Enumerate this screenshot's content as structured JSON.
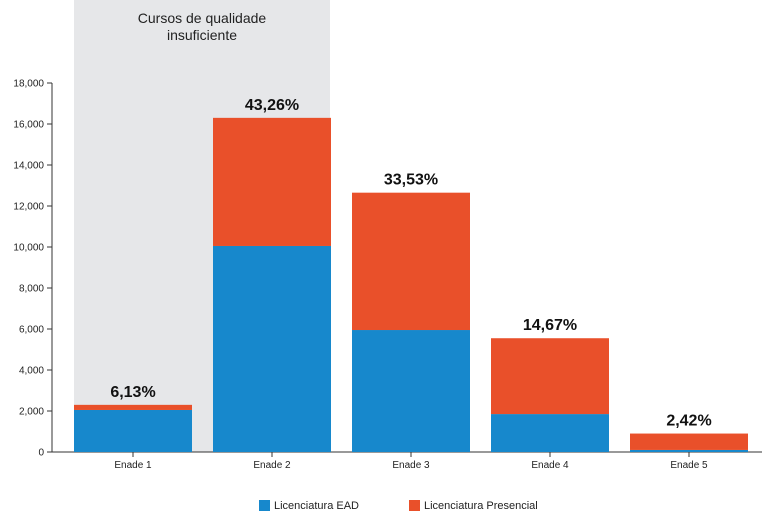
{
  "chart_data": {
    "type": "bar",
    "stacked": true,
    "categories": [
      "Enade 1",
      "Enade 2",
      "Enade 3",
      "Enade 4",
      "Enade 5"
    ],
    "series": [
      {
        "name": "Licenciatura EAD",
        "color": "#1788cc",
        "values": [
          2050,
          10050,
          5950,
          1850,
          100
        ]
      },
      {
        "name": "Licenciatura Presencial",
        "color": "#e9502a",
        "values": [
          250,
          6250,
          6700,
          3700,
          800
        ]
      }
    ],
    "bar_labels": [
      "6,13%",
      "43,26%",
      "33,53%",
      "14,67%",
      "2,42%"
    ],
    "ylim": [
      0,
      18000
    ],
    "yticks": [
      0,
      2000,
      4000,
      6000,
      8000,
      10000,
      12000,
      14000,
      16000,
      18000
    ],
    "ytick_labels": [
      "0",
      "2,000",
      "4,000",
      "6,000",
      "8,000",
      "10,000",
      "12,000",
      "14,000",
      "16,000",
      "18,000"
    ],
    "highlight": {
      "categories": [
        "Enade 1"
      ],
      "label_lines": [
        "Cursos de qualidade",
        "insuficiente"
      ],
      "color": "#e6e7e9"
    },
    "legend": {
      "position": "bottom"
    },
    "grid": false
  }
}
